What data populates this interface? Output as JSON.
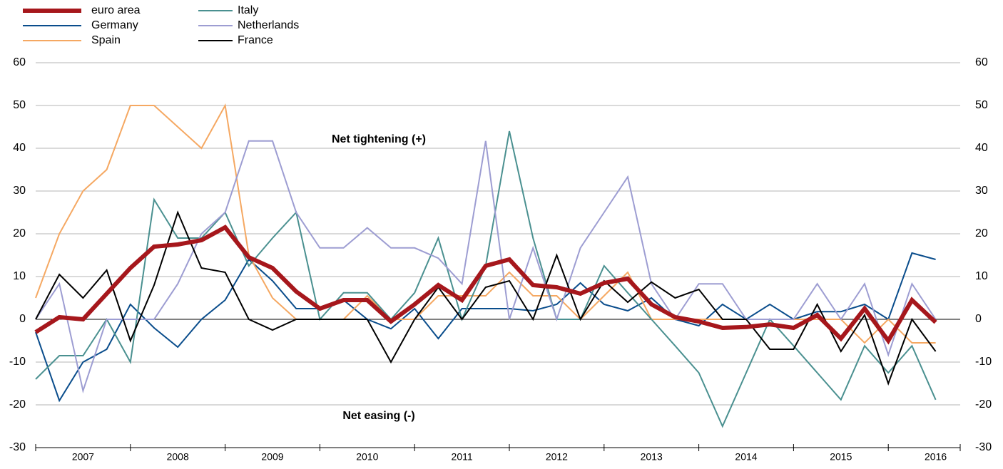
{
  "chart_data": {
    "type": "line",
    "categories": [
      null,
      null,
      "2007",
      null,
      null,
      null,
      "2008",
      null,
      null,
      null,
      "2009",
      null,
      null,
      null,
      "2010",
      null,
      null,
      null,
      "2011",
      null,
      null,
      null,
      "2012",
      null,
      null,
      null,
      "2013",
      null,
      null,
      null,
      "2014",
      null,
      null,
      null,
      "2015",
      null,
      null,
      null,
      "2016"
    ],
    "series": [
      {
        "name": "euro area",
        "color": "#a6171c",
        "values": [
          -3,
          0.5,
          0,
          6,
          12,
          17,
          17.5,
          18.5,
          21.5,
          14.5,
          12,
          6.5,
          2.5,
          4.5,
          4.5,
          -0.5,
          3.5,
          8,
          4.5,
          12.5,
          14,
          8,
          7.5,
          6,
          8.5,
          9.5,
          3.5,
          0.5,
          -0.5,
          -2,
          -1.8,
          -1.2,
          -2,
          1,
          -4.5,
          2.5,
          -5,
          4.5,
          -0.7
        ]
      },
      {
        "name": "Germany",
        "color": "#0a4d8c",
        "values": [
          -3,
          -19,
          -10,
          -7,
          3.5,
          -2,
          -6.5,
          0,
          4.5,
          14,
          9,
          2.5,
          2.5,
          4.5,
          0,
          -2.2,
          2.5,
          -4.5,
          2.5,
          2.5,
          2.5,
          2,
          3.5,
          8.5,
          3.5,
          2,
          5,
          0,
          -1.5,
          3.5,
          0,
          3.5,
          0,
          1.8,
          1.8,
          3.5,
          0,
          15.5,
          14
        ]
      },
      {
        "name": "Spain",
        "color": "#f5a862",
        "values": [
          5,
          20,
          30,
          35,
          50,
          50,
          45,
          40,
          50,
          15,
          5,
          0,
          0,
          0,
          5.5,
          0,
          0,
          5.5,
          5.5,
          5.5,
          11,
          5.5,
          5.5,
          0,
          5.5,
          11,
          0,
          0,
          0,
          0,
          0,
          0,
          0,
          0,
          0,
          -5.5,
          0,
          -5.5,
          -5.5
        ]
      },
      {
        "name": "Italy",
        "color": "#4a9090",
        "values": [
          -14,
          -8.5,
          -8.5,
          0,
          -10,
          28,
          19,
          19,
          25,
          12.5,
          19,
          25,
          0,
          6.2,
          6.2,
          0,
          6.2,
          19,
          0,
          12.5,
          44,
          19,
          0,
          0,
          12.5,
          6.2,
          0,
          -6.2,
          -12.5,
          -25,
          -12.5,
          0,
          -6.2,
          -12.5,
          -18.8,
          -6.2,
          -12.5,
          -6.2,
          -18.8
        ]
      },
      {
        "name": "Netherlands",
        "color": "#9d9dd2",
        "values": [
          0,
          8.3,
          -16.7,
          0,
          0,
          0,
          8.3,
          20,
          25,
          41.7,
          41.7,
          25,
          16.7,
          16.7,
          21.4,
          16.7,
          16.7,
          14.3,
          8.3,
          41.7,
          0,
          16.7,
          0,
          16.7,
          25,
          33.3,
          8.3,
          0,
          8.3,
          8.3,
          0,
          0,
          0,
          8.3,
          0,
          8.3,
          -8.3,
          8.3,
          0
        ]
      },
      {
        "name": "France",
        "color": "#000000",
        "values": [
          0,
          10.5,
          5,
          11.5,
          -5,
          8,
          25,
          12,
          11,
          0,
          -2.5,
          0,
          0,
          0,
          0,
          -10,
          0,
          7.5,
          0,
          7.5,
          9,
          0,
          15,
          0,
          9,
          4,
          8.7,
          5,
          7,
          0,
          0,
          -7,
          -7,
          3.5,
          -7.5,
          1,
          -15,
          0,
          -7.5
        ]
      }
    ],
    "ylim": [
      -30,
      60
    ],
    "yticks": [
      -30,
      -20,
      -10,
      0,
      10,
      20,
      30,
      40,
      50,
      60
    ],
    "y2lim": [
      -30,
      60
    ],
    "y2ticks": [
      -30,
      -20,
      -10,
      0,
      10,
      20,
      30,
      40,
      50,
      60
    ],
    "grid": true,
    "annotations": [
      "Net tightening (+)",
      "Net easing (-)"
    ]
  }
}
